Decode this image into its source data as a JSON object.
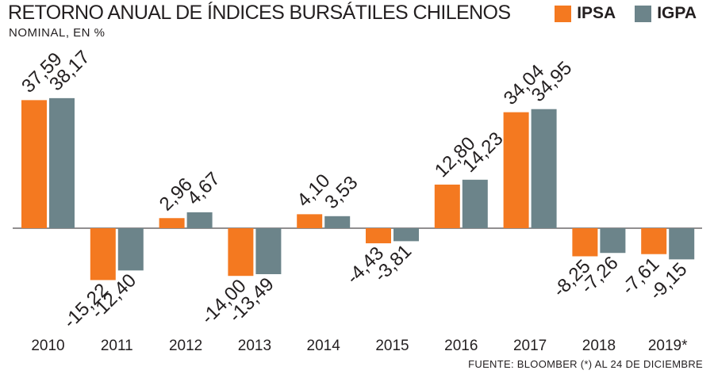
{
  "title": "RETORNO ANUAL DE ÍNDICES BURSÁTILES CHILENOS",
  "subtitle": "NOMINAL, EN %",
  "source": "FUENTE: BLOOMBER (*) AL 24 DE DICIEMBRE",
  "legend": [
    {
      "name": "IPSA",
      "color": "#f47920"
    },
    {
      "name": "IGPA",
      "color": "#6c848a"
    }
  ],
  "chart_data": {
    "type": "bar",
    "title": "RETORNO ANUAL DE ÍNDICES BURSÁTILES CHILENOS",
    "subtitle": "NOMINAL, EN %",
    "categories": [
      "2010",
      "2011",
      "2012",
      "2013",
      "2014",
      "2015",
      "2016",
      "2017",
      "2018",
      "2019*"
    ],
    "series": [
      {
        "name": "IPSA",
        "color": "#f47920",
        "values": [
          37.59,
          -15.22,
          2.96,
          -14.0,
          4.1,
          -4.43,
          12.8,
          34.04,
          -8.25,
          -7.61
        ],
        "labels": [
          "37,59",
          "-15,22",
          "2,96",
          "-14,00",
          "4,10",
          "-4,43",
          "12,80",
          "34,04",
          "-8,25",
          "-7,61"
        ]
      },
      {
        "name": "IGPA",
        "color": "#6c848a",
        "values": [
          38.17,
          -12.4,
          4.67,
          -13.49,
          3.53,
          -3.81,
          14.23,
          34.95,
          -7.26,
          -9.15
        ],
        "labels": [
          "38,17",
          "-12,40",
          "4,67",
          "-13,49",
          "3,53",
          "-3,81",
          "14,23",
          "34,95",
          "-7,26",
          "-9,15"
        ]
      }
    ],
    "ylim": [
      -30,
      46
    ],
    "grid": false,
    "legend_position": "top-right",
    "label_rotation": -45
  }
}
